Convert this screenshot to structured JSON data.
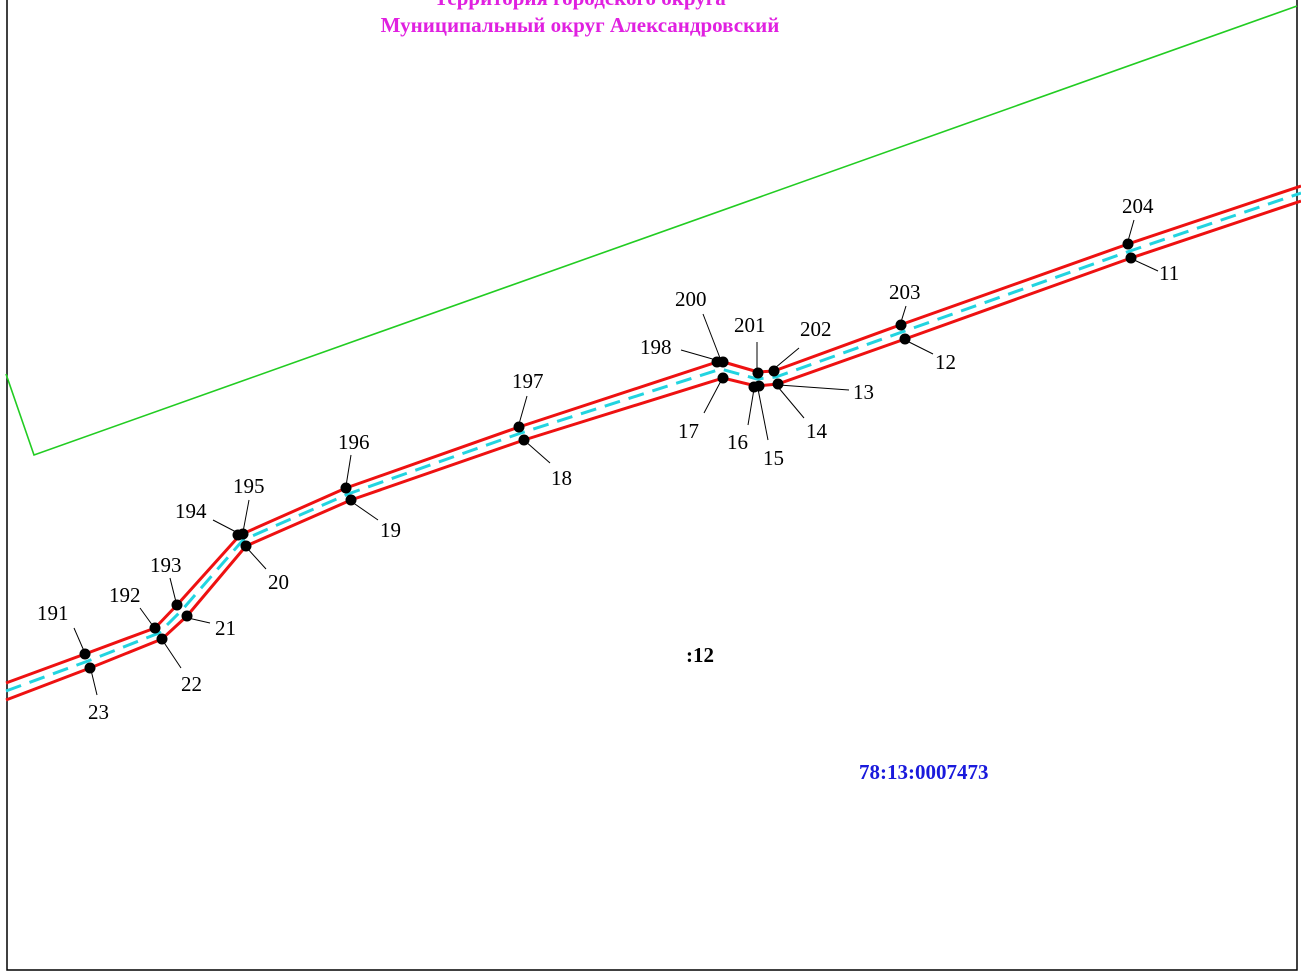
{
  "map": {
    "title_line_1": "Территория городского округа",
    "title_line_2": "Муниципальный округ Александровский",
    "parcel_number": ":12",
    "cadastral_quarter": "78:13:0007473",
    "colors": {
      "title": "#e020e0",
      "quarter_label": "#1a1adc",
      "boundary_outline": "#ee1111",
      "centerline": "#22d4e0",
      "district_boundary": "#22cc22",
      "frame": "#000000",
      "vertex": "#000000"
    },
    "points": {
      "p191": "191",
      "p192": "192",
      "p193": "193",
      "p194": "194",
      "p195": "195",
      "p196": "196",
      "p197": "197",
      "p198": "198",
      "p200": "200",
      "p201": "201",
      "p202": "202",
      "p203": "203",
      "p204": "204",
      "p11": "11",
      "p12": "12",
      "p13": "13",
      "p14": "14",
      "p15": "15",
      "p16": "16",
      "p17": "17",
      "p18": "18",
      "p19": "19",
      "p20": "20",
      "p21": "21",
      "p22": "22",
      "p23": "23"
    }
  }
}
